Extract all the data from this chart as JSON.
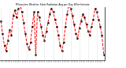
{
  "title": "Milwaukee Weather Solar Radiation Avg per Day W/m²/minute",
  "line_color": "#ff0000",
  "line_style": "--",
  "line_width": 0.7,
  "marker": "s",
  "marker_color": "#000000",
  "marker_size": 1.2,
  "background_color": "#ffffff",
  "grid_color": "#bbbbbb",
  "ylim": [
    0,
    300
  ],
  "yticks": [
    50,
    100,
    150,
    200,
    250,
    300
  ],
  "ytick_labels": [
    "50",
    "100",
    "150",
    "200",
    "250",
    "300"
  ],
  "values": [
    220,
    150,
    80,
    50,
    110,
    170,
    140,
    250,
    280,
    240,
    290,
    310,
    270,
    210,
    150,
    90,
    60,
    100,
    190,
    270,
    30,
    270,
    240,
    190,
    140,
    110,
    160,
    210,
    260,
    290,
    270,
    230,
    190,
    140,
    80,
    50,
    100,
    190,
    260,
    310,
    290,
    250,
    200,
    150,
    120,
    180,
    220,
    260,
    240,
    200,
    160,
    140,
    190,
    230,
    290,
    270,
    230,
    190,
    140,
    30
  ]
}
